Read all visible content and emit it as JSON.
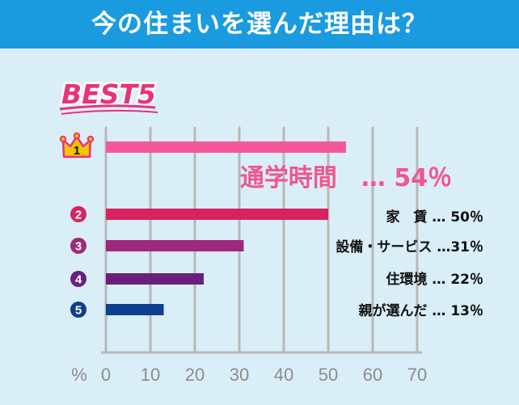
{
  "header": {
    "title": "今の住まいを選んだ理由は？"
  },
  "badge": {
    "text": "BEST5",
    "color": "#e8327a"
  },
  "colors": {
    "background": "#d9eef7",
    "header": "#1a9be0",
    "grid": "#b8b8b8",
    "axis_text": "#8c8c8c",
    "top_label": "#f0568f",
    "crown": "#f5c400",
    "crown_outline": "#e8327a"
  },
  "chart_data": {
    "type": "bar",
    "orientation": "horizontal",
    "title": "今の住まいを選んだ理由は？",
    "xlabel": "%",
    "xlim": [
      0,
      70
    ],
    "xticks": [
      "0",
      "10",
      "20",
      "30",
      "40",
      "50",
      "60",
      "70"
    ],
    "grid": true,
    "categories": [
      "通学時間",
      "家　賃",
      "設備・サービス",
      "住環境",
      "親が選んだ"
    ],
    "values": [
      54,
      50,
      31,
      22,
      13
    ],
    "ranks": [
      "1",
      "2",
      "3",
      "4",
      "5"
    ],
    "rank_icons": [
      "crown-icon",
      "circle-icon",
      "circle-icon",
      "circle-icon",
      "circle-icon"
    ],
    "labels": [
      "通学時間　…  54％",
      "家　賃  …  50％",
      "設備・サービス  …31％",
      "住環境  …  22％",
      "親が選んだ  …  13％"
    ],
    "bar_colors": [
      "#f7579a",
      "#d7245e",
      "#a0287c",
      "#6a1f7d",
      "#0e3f8f"
    ]
  }
}
